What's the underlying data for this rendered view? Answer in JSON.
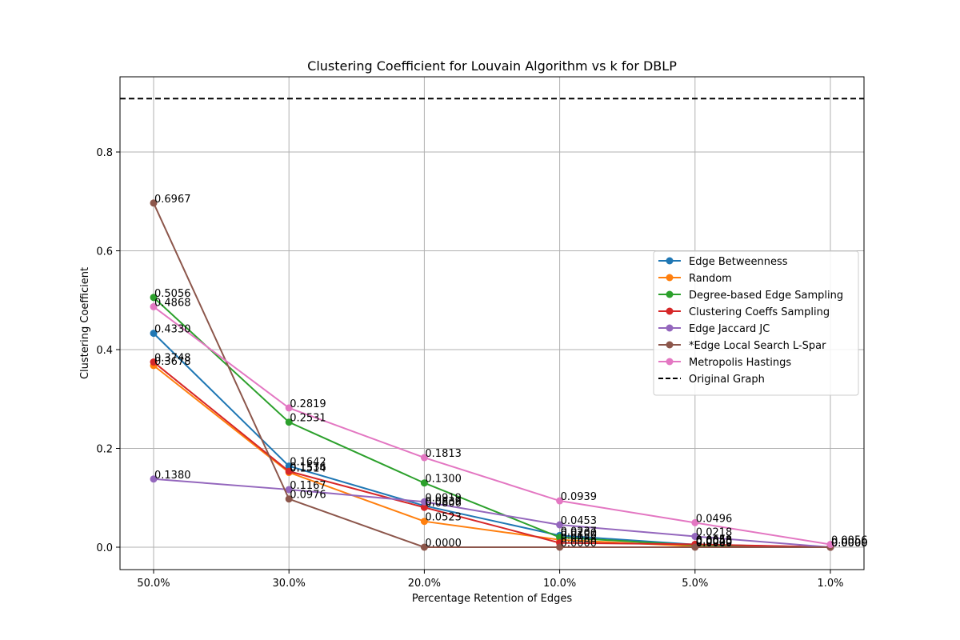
{
  "chart_data": {
    "type": "line",
    "title": "Clustering Coefficient for Louvain Algorithm vs k for DBLP",
    "xlabel": "Percentage Retention of Edges",
    "ylabel": "Clustering Coefficient",
    "categories": [
      "50.0%",
      "30.0%",
      "20.0%",
      "10.0%",
      "5.0%",
      "1.0%"
    ],
    "ylim": [
      -0.045,
      0.95
    ],
    "yticks": [
      "0.0",
      "0.2",
      "0.4",
      "0.6",
      "0.8"
    ],
    "grid": true,
    "legend_position": "center-right",
    "series": [
      {
        "name": "Edge Betweenness",
        "color": "#1f77b4",
        "values": [
          0.433,
          0.1642,
          0.0839,
          0.0237,
          0.0053,
          0.0
        ],
        "labels": [
          "0.4330",
          "0.1642",
          "0.0839",
          "0.0237",
          "0.0053",
          "0.0000"
        ]
      },
      {
        "name": "Random",
        "color": "#ff7f0e",
        "values": [
          0.3678,
          0.1514,
          0.0523,
          0.015,
          0.002,
          0.0
        ],
        "labels": [
          "0.3678",
          "0.1514",
          "0.0523",
          "0.0150",
          "0.0020",
          "0.0000"
        ]
      },
      {
        "name": "Degree-based Edge Sampling",
        "color": "#2ca02c",
        "values": [
          0.5056,
          0.2531,
          0.13,
          0.02,
          0.004,
          0.0
        ],
        "labels": [
          "0.5056",
          "0.2531",
          "0.1300",
          "0.0200",
          "0.0040",
          "0.0000"
        ]
      },
      {
        "name": "Clustering Coeffs Sampling",
        "color": "#d62728",
        "values": [
          0.3748,
          0.1536,
          0.0806,
          0.0088,
          0.0058,
          0.0
        ],
        "labels": [
          "0.3748",
          "0.1536",
          "0.0806",
          "0.0088",
          "0.0058",
          "0.0000"
        ]
      },
      {
        "name": "Edge Jaccard JC",
        "color": "#9467bd",
        "values": [
          0.138,
          0.1167,
          0.0919,
          0.0453,
          0.0218,
          0.0
        ],
        "labels": [
          "0.1380",
          "0.1167",
          "0.0919",
          "0.0453",
          "0.0218",
          "0.0000"
        ]
      },
      {
        "name": "*Edge Local Search L-Spar",
        "color": "#8c564b",
        "values": [
          0.6967,
          0.0976,
          0.0,
          0.0,
          0.0,
          0.0
        ],
        "labels": [
          "0.6967",
          "0.0976",
          "0.0000",
          "0.0000",
          "0.0000",
          "0.0000"
        ]
      },
      {
        "name": "Metropolis Hastings",
        "color": "#e377c2",
        "values": [
          0.4868,
          0.2819,
          0.1813,
          0.0939,
          0.0496,
          0.0056
        ],
        "labels": [
          "0.4868",
          "0.2819",
          "0.1813",
          "0.0939",
          "0.0496",
          "0.0056"
        ]
      }
    ],
    "reference_line": {
      "name": "Original Graph",
      "value": 0.908,
      "color": "#000000",
      "style": "dashed"
    }
  }
}
